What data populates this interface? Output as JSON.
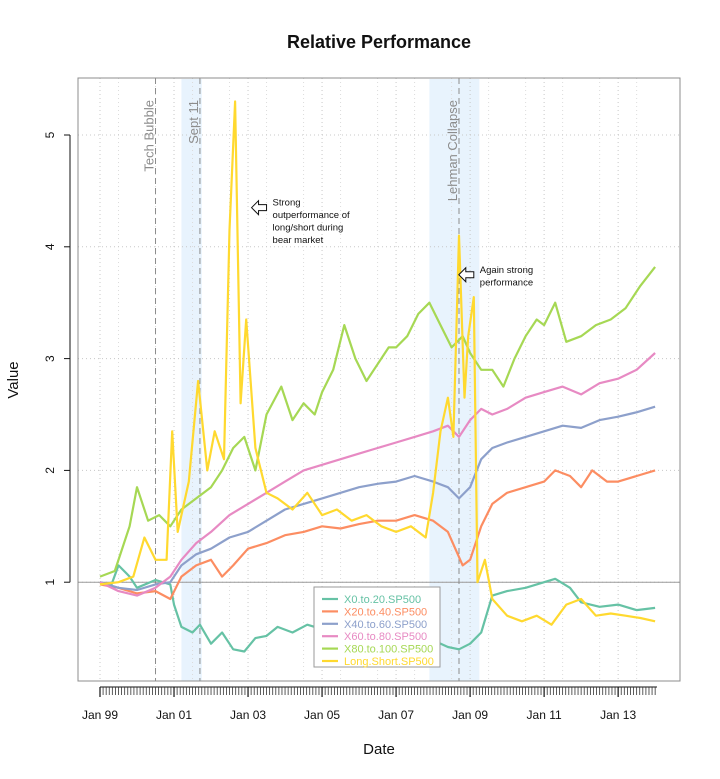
{
  "chart_data": {
    "type": "line",
    "title": "Relative Performance",
    "xlabel": "Date",
    "ylabel": "Value",
    "x_range": [
      1999.0,
      2014.05
    ],
    "ylim": [
      0.0,
      5.5
    ],
    "x_ticks": [
      {
        "label": "Jan 99",
        "value": 1999.0
      },
      {
        "label": "Jan 01",
        "value": 2001.0
      },
      {
        "label": "Jan 03",
        "value": 2003.0
      },
      {
        "label": "Jan 05",
        "value": 2005.0
      },
      {
        "label": "Jan 07",
        "value": 2007.0
      },
      {
        "label": "Jan 09",
        "value": 2009.0
      },
      {
        "label": "Jan 11",
        "value": 2011.0
      },
      {
        "label": "Jan 13",
        "value": 2013.0
      }
    ],
    "y_ticks": [
      1,
      2,
      3,
      4,
      5
    ],
    "grid": true,
    "reference_line": 1,
    "legend_position": "bottom-center",
    "shaded_periods": [
      {
        "start": 2001.2,
        "end": 2001.75
      },
      {
        "start": 2007.9,
        "end": 2009.25
      }
    ],
    "events": [
      {
        "label": "Tech Bubble",
        "x": 2000.5
      },
      {
        "label": "Sept 11",
        "x": 2001.7
      },
      {
        "label": "Lehman Collapse",
        "x": 2008.7
      }
    ],
    "annotations": [
      {
        "lines": [
          "Strong",
          "outperformance of",
          "long/short during",
          "bear market"
        ],
        "x": 2003.5,
        "y": 4.35
      },
      {
        "lines": [
          "Again strong",
          "performance"
        ],
        "x": 2009.1,
        "y": 3.75
      }
    ],
    "series": [
      {
        "name": "X0.to.20.SP500",
        "color": "#66c2a5",
        "points": [
          [
            1999.0,
            1.0
          ],
          [
            1999.3,
            0.97
          ],
          [
            1999.5,
            1.15
          ],
          [
            1999.8,
            1.05
          ],
          [
            2000.0,
            0.95
          ],
          [
            2000.5,
            1.02
          ],
          [
            2000.9,
            0.98
          ],
          [
            2001.0,
            0.8
          ],
          [
            2001.2,
            0.6
          ],
          [
            2001.5,
            0.55
          ],
          [
            2001.7,
            0.62
          ],
          [
            2002.0,
            0.45
          ],
          [
            2002.3,
            0.55
          ],
          [
            2002.6,
            0.4
          ],
          [
            2002.9,
            0.38
          ],
          [
            2003.2,
            0.5
          ],
          [
            2003.5,
            0.52
          ],
          [
            2003.8,
            0.6
          ],
          [
            2004.2,
            0.55
          ],
          [
            2004.6,
            0.62
          ],
          [
            2005.0,
            0.58
          ],
          [
            2005.5,
            0.65
          ],
          [
            2006.0,
            0.55
          ],
          [
            2006.5,
            0.6
          ],
          [
            2007.0,
            0.52
          ],
          [
            2007.5,
            0.58
          ],
          [
            2008.0,
            0.48
          ],
          [
            2008.4,
            0.42
          ],
          [
            2008.7,
            0.4
          ],
          [
            2009.0,
            0.45
          ],
          [
            2009.3,
            0.55
          ],
          [
            2009.6,
            0.88
          ],
          [
            2010.0,
            0.92
          ],
          [
            2010.5,
            0.95
          ],
          [
            2011.0,
            1.0
          ],
          [
            2011.3,
            1.03
          ],
          [
            2011.7,
            0.95
          ],
          [
            2012.0,
            0.82
          ],
          [
            2012.5,
            0.78
          ],
          [
            2013.0,
            0.8
          ],
          [
            2013.5,
            0.75
          ],
          [
            2014.0,
            0.77
          ]
        ]
      },
      {
        "name": "X20.to.40.SP500",
        "color": "#fc8d62",
        "points": [
          [
            1999.0,
            0.98
          ],
          [
            1999.5,
            0.95
          ],
          [
            2000.0,
            0.9
          ],
          [
            2000.5,
            0.92
          ],
          [
            2000.9,
            0.85
          ],
          [
            2001.2,
            1.05
          ],
          [
            2001.6,
            1.15
          ],
          [
            2002.0,
            1.2
          ],
          [
            2002.3,
            1.05
          ],
          [
            2002.6,
            1.15
          ],
          [
            2003.0,
            1.3
          ],
          [
            2003.5,
            1.35
          ],
          [
            2004.0,
            1.42
          ],
          [
            2004.5,
            1.45
          ],
          [
            2005.0,
            1.5
          ],
          [
            2005.5,
            1.48
          ],
          [
            2006.0,
            1.52
          ],
          [
            2006.5,
            1.55
          ],
          [
            2007.0,
            1.55
          ],
          [
            2007.5,
            1.6
          ],
          [
            2008.0,
            1.55
          ],
          [
            2008.4,
            1.45
          ],
          [
            2008.6,
            1.3
          ],
          [
            2008.8,
            1.15
          ],
          [
            2009.0,
            1.2
          ],
          [
            2009.3,
            1.5
          ],
          [
            2009.6,
            1.7
          ],
          [
            2010.0,
            1.8
          ],
          [
            2010.5,
            1.85
          ],
          [
            2011.0,
            1.9
          ],
          [
            2011.3,
            2.0
          ],
          [
            2011.7,
            1.95
          ],
          [
            2012.0,
            1.85
          ],
          [
            2012.3,
            2.0
          ],
          [
            2012.7,
            1.9
          ],
          [
            2013.0,
            1.9
          ],
          [
            2013.5,
            1.95
          ],
          [
            2014.0,
            2.0
          ]
        ]
      },
      {
        "name": "X40.to.60.SP500",
        "color": "#8da0cb",
        "points": [
          [
            1999.0,
            1.0
          ],
          [
            1999.5,
            0.95
          ],
          [
            2000.0,
            0.93
          ],
          [
            2000.5,
            0.98
          ],
          [
            2000.9,
            1.0
          ],
          [
            2001.2,
            1.15
          ],
          [
            2001.6,
            1.25
          ],
          [
            2002.0,
            1.3
          ],
          [
            2002.5,
            1.4
          ],
          [
            2003.0,
            1.45
          ],
          [
            2003.5,
            1.55
          ],
          [
            2004.0,
            1.65
          ],
          [
            2004.5,
            1.7
          ],
          [
            2005.0,
            1.75
          ],
          [
            2005.5,
            1.8
          ],
          [
            2006.0,
            1.85
          ],
          [
            2006.5,
            1.88
          ],
          [
            2007.0,
            1.9
          ],
          [
            2007.5,
            1.95
          ],
          [
            2008.0,
            1.9
          ],
          [
            2008.4,
            1.85
          ],
          [
            2008.7,
            1.75
          ],
          [
            2009.0,
            1.85
          ],
          [
            2009.3,
            2.1
          ],
          [
            2009.6,
            2.2
          ],
          [
            2010.0,
            2.25
          ],
          [
            2010.5,
            2.3
          ],
          [
            2011.0,
            2.35
          ],
          [
            2011.5,
            2.4
          ],
          [
            2012.0,
            2.38
          ],
          [
            2012.5,
            2.45
          ],
          [
            2013.0,
            2.48
          ],
          [
            2013.5,
            2.52
          ],
          [
            2014.0,
            2.57
          ]
        ]
      },
      {
        "name": "X60.to.80.SP500",
        "color": "#e78ac3",
        "points": [
          [
            1999.0,
            1.0
          ],
          [
            1999.5,
            0.92
          ],
          [
            2000.0,
            0.88
          ],
          [
            2000.5,
            0.95
          ],
          [
            2000.9,
            1.05
          ],
          [
            2001.2,
            1.2
          ],
          [
            2001.6,
            1.35
          ],
          [
            2002.0,
            1.45
          ],
          [
            2002.5,
            1.6
          ],
          [
            2003.0,
            1.7
          ],
          [
            2003.5,
            1.8
          ],
          [
            2004.0,
            1.9
          ],
          [
            2004.5,
            2.0
          ],
          [
            2005.0,
            2.05
          ],
          [
            2005.5,
            2.1
          ],
          [
            2006.0,
            2.15
          ],
          [
            2006.5,
            2.2
          ],
          [
            2007.0,
            2.25
          ],
          [
            2007.5,
            2.3
          ],
          [
            2008.0,
            2.35
          ],
          [
            2008.4,
            2.4
          ],
          [
            2008.7,
            2.3
          ],
          [
            2009.0,
            2.45
          ],
          [
            2009.3,
            2.55
          ],
          [
            2009.6,
            2.5
          ],
          [
            2010.0,
            2.55
          ],
          [
            2010.5,
            2.65
          ],
          [
            2011.0,
            2.7
          ],
          [
            2011.5,
            2.75
          ],
          [
            2012.0,
            2.68
          ],
          [
            2012.5,
            2.78
          ],
          [
            2013.0,
            2.82
          ],
          [
            2013.5,
            2.9
          ],
          [
            2014.0,
            3.05
          ]
        ]
      },
      {
        "name": "X80.to.100.SP500",
        "color": "#a6d854",
        "points": [
          [
            1999.0,
            1.05
          ],
          [
            1999.4,
            1.1
          ],
          [
            1999.8,
            1.5
          ],
          [
            2000.0,
            1.85
          ],
          [
            2000.3,
            1.55
          ],
          [
            2000.6,
            1.6
          ],
          [
            2000.9,
            1.5
          ],
          [
            2001.2,
            1.65
          ],
          [
            2001.6,
            1.75
          ],
          [
            2002.0,
            1.85
          ],
          [
            2002.3,
            2.0
          ],
          [
            2002.6,
            2.2
          ],
          [
            2002.9,
            2.3
          ],
          [
            2003.2,
            2.0
          ],
          [
            2003.5,
            2.5
          ],
          [
            2003.9,
            2.75
          ],
          [
            2004.2,
            2.45
          ],
          [
            2004.5,
            2.6
          ],
          [
            2004.8,
            2.5
          ],
          [
            2005.0,
            2.7
          ],
          [
            2005.3,
            2.9
          ],
          [
            2005.6,
            3.3
          ],
          [
            2005.9,
            3.0
          ],
          [
            2006.2,
            2.8
          ],
          [
            2006.5,
            2.95
          ],
          [
            2006.8,
            3.1
          ],
          [
            2007.0,
            3.1
          ],
          [
            2007.3,
            3.2
          ],
          [
            2007.6,
            3.4
          ],
          [
            2007.9,
            3.5
          ],
          [
            2008.2,
            3.3
          ],
          [
            2008.5,
            3.1
          ],
          [
            2008.8,
            3.2
          ],
          [
            2009.0,
            3.05
          ],
          [
            2009.3,
            2.9
          ],
          [
            2009.6,
            2.9
          ],
          [
            2009.9,
            2.75
          ],
          [
            2010.2,
            3.0
          ],
          [
            2010.5,
            3.2
          ],
          [
            2010.8,
            3.35
          ],
          [
            2011.0,
            3.3
          ],
          [
            2011.3,
            3.5
          ],
          [
            2011.6,
            3.15
          ],
          [
            2012.0,
            3.2
          ],
          [
            2012.4,
            3.3
          ],
          [
            2012.8,
            3.35
          ],
          [
            2013.2,
            3.45
          ],
          [
            2013.6,
            3.65
          ],
          [
            2014.0,
            3.82
          ]
        ]
      },
      {
        "name": "Long.Short.SP500",
        "color": "#ffd92f",
        "points": [
          [
            1999.0,
            0.98
          ],
          [
            1999.5,
            1.0
          ],
          [
            1999.9,
            1.05
          ],
          [
            2000.2,
            1.4
          ],
          [
            2000.5,
            1.2
          ],
          [
            2000.8,
            1.2
          ],
          [
            2000.95,
            2.35
          ],
          [
            2001.1,
            1.45
          ],
          [
            2001.4,
            1.9
          ],
          [
            2001.65,
            2.8
          ],
          [
            2001.9,
            2.0
          ],
          [
            2002.1,
            2.35
          ],
          [
            2002.35,
            2.1
          ],
          [
            2002.5,
            4.15
          ],
          [
            2002.65,
            5.3
          ],
          [
            2002.8,
            2.6
          ],
          [
            2002.95,
            3.35
          ],
          [
            2003.2,
            2.2
          ],
          [
            2003.5,
            1.8
          ],
          [
            2003.8,
            1.75
          ],
          [
            2004.2,
            1.65
          ],
          [
            2004.6,
            1.8
          ],
          [
            2005.0,
            1.6
          ],
          [
            2005.4,
            1.65
          ],
          [
            2005.8,
            1.55
          ],
          [
            2006.2,
            1.6
          ],
          [
            2006.6,
            1.5
          ],
          [
            2007.0,
            1.45
          ],
          [
            2007.4,
            1.5
          ],
          [
            2007.8,
            1.4
          ],
          [
            2008.0,
            1.8
          ],
          [
            2008.2,
            2.35
          ],
          [
            2008.4,
            2.65
          ],
          [
            2008.55,
            2.3
          ],
          [
            2008.7,
            4.1
          ],
          [
            2008.85,
            2.65
          ],
          [
            2008.95,
            3.2
          ],
          [
            2009.1,
            3.55
          ],
          [
            2009.2,
            1.0
          ],
          [
            2009.4,
            1.2
          ],
          [
            2009.6,
            0.85
          ],
          [
            2010.0,
            0.7
          ],
          [
            2010.4,
            0.65
          ],
          [
            2010.8,
            0.7
          ],
          [
            2011.2,
            0.62
          ],
          [
            2011.6,
            0.8
          ],
          [
            2012.0,
            0.85
          ],
          [
            2012.4,
            0.7
          ],
          [
            2012.8,
            0.72
          ],
          [
            2013.2,
            0.7
          ],
          [
            2013.6,
            0.68
          ],
          [
            2014.0,
            0.65
          ]
        ]
      }
    ]
  }
}
